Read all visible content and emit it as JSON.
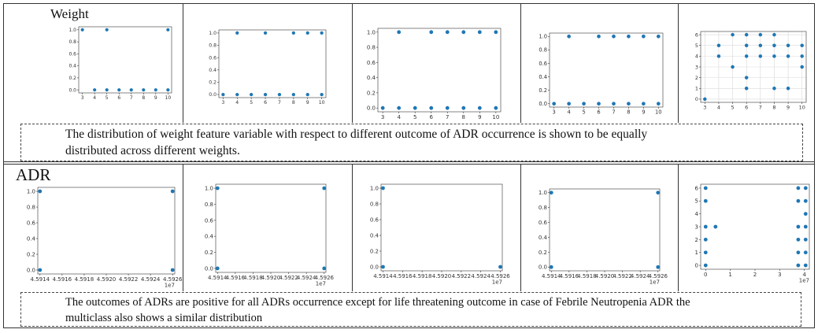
{
  "figure": {
    "colors": {
      "marker": "#1f77b4",
      "grid": "#d9d9d9",
      "frame": "#333333"
    },
    "rows": [
      {
        "label": "Weight",
        "caption_lines": [
          "The distribution of weight feature variable with respect to different outcome of ADR occurrence is shown to be equally",
          "distributed across different weights."
        ]
      },
      {
        "label": "ADR",
        "caption_lines": [
          "The outcomes of ADRs are positive for all ADRs occurrence except for life threatening outcome in case of Febrile Neutropenia ADR the",
          "multiclass also  shows a similar distribution"
        ]
      }
    ]
  },
  "chart_data": [
    {
      "type": "scatter",
      "xlim": [
        2.7,
        10.3
      ],
      "ylim": [
        -0.05,
        1.05
      ],
      "grid": false,
      "xticks": [
        "3",
        "4",
        "5",
        "6",
        "7",
        "8",
        "9",
        "10"
      ],
      "xtick_values": [
        3,
        4,
        5,
        6,
        7,
        8,
        9,
        10
      ],
      "yticks": [
        "0.0",
        "0.2",
        "0.4",
        "0.6",
        "0.8",
        "1.0"
      ],
      "ytick_values": [
        0,
        0.2,
        0.4,
        0.6,
        0.8,
        1.0
      ],
      "x": [
        3,
        5,
        10,
        4,
        5,
        6,
        7,
        8,
        9,
        10
      ],
      "y": [
        1,
        1,
        1,
        0,
        0,
        0,
        0,
        0,
        0,
        0
      ]
    },
    {
      "type": "scatter",
      "xlim": [
        2.7,
        10.3
      ],
      "ylim": [
        -0.05,
        1.05
      ],
      "grid": false,
      "xticks": [
        "3",
        "4",
        "5",
        "6",
        "7",
        "8",
        "9",
        "10"
      ],
      "xtick_values": [
        3,
        4,
        5,
        6,
        7,
        8,
        9,
        10
      ],
      "yticks": [
        "0.0",
        "0.2",
        "0.4",
        "0.6",
        "0.8",
        "1.0"
      ],
      "ytick_values": [
        0,
        0.2,
        0.4,
        0.6,
        0.8,
        1.0
      ],
      "x": [
        4,
        6,
        8,
        9,
        10,
        3,
        4,
        5,
        6,
        7,
        8,
        9,
        10
      ],
      "y": [
        1,
        1,
        1,
        1,
        1,
        0,
        0,
        0,
        0,
        0,
        0,
        0,
        0
      ]
    },
    {
      "type": "scatter",
      "xlim": [
        2.7,
        10.3
      ],
      "ylim": [
        -0.05,
        1.05
      ],
      "grid": false,
      "xticks": [
        "3",
        "4",
        "5",
        "6",
        "7",
        "8",
        "9",
        "10"
      ],
      "xtick_values": [
        3,
        4,
        5,
        6,
        7,
        8,
        9,
        10
      ],
      "yticks": [
        "0.0",
        "0.2",
        "0.4",
        "0.6",
        "0.8",
        "1.0"
      ],
      "ytick_values": [
        0,
        0.2,
        0.4,
        0.6,
        0.8,
        1.0
      ],
      "x": [
        4,
        6,
        7,
        8,
        9,
        10,
        3,
        4,
        5,
        6,
        7,
        8,
        9,
        10
      ],
      "y": [
        1,
        1,
        1,
        1,
        1,
        1,
        0,
        0,
        0,
        0,
        0,
        0,
        0,
        0
      ]
    },
    {
      "type": "scatter",
      "xlim": [
        2.7,
        10.3
      ],
      "ylim": [
        -0.05,
        1.05
      ],
      "grid": false,
      "xticks": [
        "3",
        "4",
        "5",
        "6",
        "7",
        "8",
        "9",
        "10"
      ],
      "xtick_values": [
        3,
        4,
        5,
        6,
        7,
        8,
        9,
        10
      ],
      "yticks": [
        "0.0",
        "0.2",
        "0.4",
        "0.6",
        "0.8",
        "1.0"
      ],
      "ytick_values": [
        0,
        0.2,
        0.4,
        0.6,
        0.8,
        1.0
      ],
      "x": [
        4,
        6,
        7,
        8,
        9,
        10,
        3,
        4,
        5,
        6,
        7,
        8,
        9,
        10
      ],
      "y": [
        1,
        1,
        1,
        1,
        1,
        1,
        0,
        0,
        0,
        0,
        0,
        0,
        0,
        0
      ]
    },
    {
      "type": "scatter",
      "xlim": [
        2.7,
        10.3
      ],
      "ylim": [
        -0.3,
        6.3
      ],
      "grid": true,
      "xticks": [
        "3",
        "4",
        "5",
        "6",
        "7",
        "8",
        "9",
        "10"
      ],
      "xtick_values": [
        3,
        4,
        5,
        6,
        7,
        8,
        9,
        10
      ],
      "yticks": [
        "0",
        "1",
        "2",
        "3",
        "4",
        "5",
        "6"
      ],
      "ytick_values": [
        0,
        1,
        2,
        3,
        4,
        5,
        6
      ],
      "x": [
        3,
        4,
        4,
        5,
        5,
        6,
        6,
        6,
        6,
        6,
        7,
        7,
        7,
        8,
        8,
        8,
        8,
        9,
        9,
        9,
        10,
        10,
        10
      ],
      "y": [
        0,
        4,
        5,
        3,
        6,
        1,
        2,
        4,
        5,
        6,
        4,
        5,
        6,
        1,
        4,
        5,
        6,
        1,
        4,
        5,
        3,
        4,
        5
      ]
    },
    {
      "type": "scatter",
      "xlim": [
        45913800,
        45926200
      ],
      "ylim": [
        -0.05,
        1.05
      ],
      "grid": false,
      "xticks": [
        "4.5914",
        "4.5916",
        "4.5918",
        "4.5920",
        "4.5922",
        "4.5924",
        "4.5926"
      ],
      "xtick_values": [
        45914000,
        45916000,
        45918000,
        45920000,
        45922000,
        45924000,
        45926000
      ],
      "xoffset": "1e7",
      "yticks": [
        "0.0",
        "0.2",
        "0.4",
        "0.6",
        "0.8",
        "1.0"
      ],
      "ytick_values": [
        0,
        0.2,
        0.4,
        0.6,
        0.8,
        1.0
      ],
      "x": [
        45914000,
        45914000,
        45926000,
        45926000
      ],
      "y": [
        1,
        0,
        1,
        0
      ]
    },
    {
      "type": "scatter",
      "xlim": [
        45913800,
        45926200
      ],
      "ylim": [
        -0.05,
        1.05
      ],
      "grid": false,
      "xticks": [
        "4.5914",
        "4.5916",
        "4.5918",
        "4.5920",
        "4.5922",
        "4.5924",
        "4.5926"
      ],
      "xtick_values": [
        45914000,
        45916000,
        45918000,
        45920000,
        45922000,
        45924000,
        45926000
      ],
      "xoffset": "1e7",
      "yticks": [
        "0.0",
        "0.2",
        "0.4",
        "0.6",
        "0.8",
        "1.0"
      ],
      "ytick_values": [
        0,
        0.2,
        0.4,
        0.6,
        0.8,
        1.0
      ],
      "x": [
        45914000,
        45914000,
        45926000,
        45926000
      ],
      "y": [
        1,
        0,
        1,
        0
      ]
    },
    {
      "type": "scatter",
      "xlim": [
        45913800,
        45926200
      ],
      "ylim": [
        -0.05,
        1.05
      ],
      "grid": false,
      "xticks": [
        "4.5914",
        "4.5916",
        "4.5918",
        "4.5920",
        "4.5922",
        "4.5924",
        "4.5926"
      ],
      "xtick_values": [
        45914000,
        45916000,
        45918000,
        45920000,
        45922000,
        45924000,
        45926000
      ],
      "xoffset": "1e7",
      "yticks": [
        "0.0",
        "0.2",
        "0.4",
        "0.6",
        "0.8",
        "1.0"
      ],
      "ytick_values": [
        0,
        0.2,
        0.4,
        0.6,
        0.8,
        1.0
      ],
      "x": [
        45914000,
        45914000,
        45926000
      ],
      "y": [
        1,
        0,
        0
      ]
    },
    {
      "type": "scatter",
      "xlim": [
        45913800,
        45926200
      ],
      "ylim": [
        -0.05,
        1.05
      ],
      "grid": false,
      "xticks": [
        "4.5914",
        "4.5916",
        "4.5918",
        "4.5920",
        "4.5922",
        "4.5924",
        "4.5926"
      ],
      "xtick_values": [
        45914000,
        45916000,
        45918000,
        45920000,
        45922000,
        45924000,
        45926000
      ],
      "xoffset": "1e7",
      "yticks": [
        "0.0",
        "0.2",
        "0.4",
        "0.6",
        "0.8",
        "1.0"
      ],
      "ytick_values": [
        0,
        0.2,
        0.4,
        0.6,
        0.8,
        1.0
      ],
      "x": [
        45914000,
        45914000,
        45926000,
        45926000
      ],
      "y": [
        1,
        0,
        1,
        0
      ]
    },
    {
      "type": "scatter",
      "xlim": [
        -0.2,
        4.2
      ],
      "ylim": [
        -0.3,
        6.3
      ],
      "grid": false,
      "xticks": [
        "0",
        "1",
        "2",
        "3",
        "4"
      ],
      "xtick_values": [
        0,
        1,
        2,
        3,
        4
      ],
      "xoffset": "1e7",
      "yticks": [
        "0",
        "1",
        "2",
        "3",
        "4",
        "5",
        "6"
      ],
      "ytick_values": [
        0,
        1,
        2,
        3,
        4,
        5,
        6
      ],
      "x": [
        0,
        0,
        0,
        0,
        0,
        0,
        0.4,
        3.75,
        3.75,
        3.75,
        3.75,
        3.75,
        3.75,
        4.05,
        4.05,
        4.05,
        4.05,
        4.05,
        4.05,
        4.05
      ],
      "y": [
        6,
        5,
        3,
        2,
        1,
        0,
        3,
        6,
        5,
        3,
        2,
        1,
        0,
        6,
        5,
        4,
        3,
        2,
        1,
        0
      ]
    }
  ]
}
